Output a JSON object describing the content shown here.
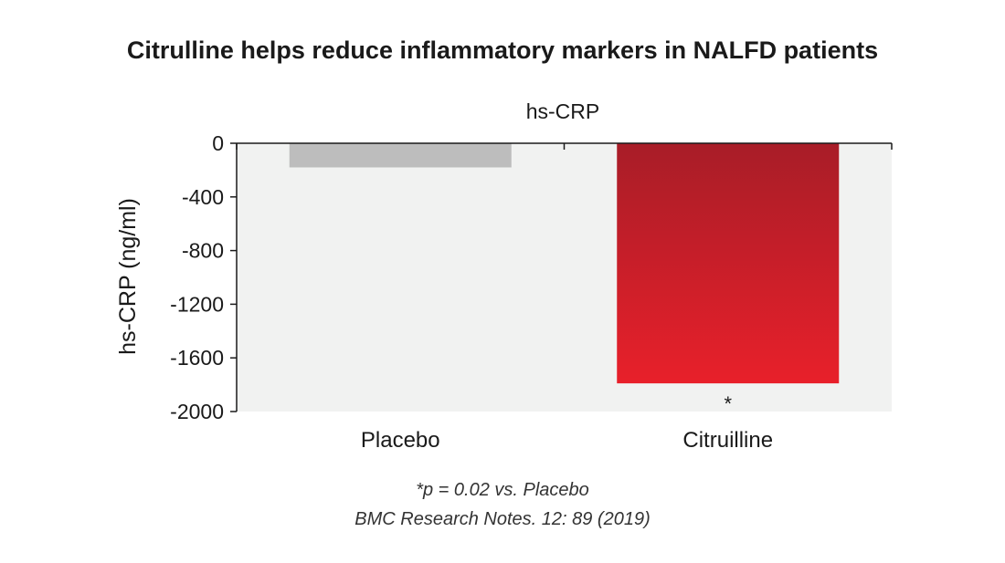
{
  "title": "Citrulline helps reduce inflammatory markers in NALFD patients",
  "footnotes": {
    "significance": "*p = 0.02 vs. Placebo",
    "source": "BMC Research Notes. 12: 89 (2019)"
  },
  "colors": {
    "placebo": "#bdbdbd",
    "citrulline_top": "#a81d28",
    "citrulline_bottom": "#e8202a",
    "plot_background": "#f1f2f1"
  },
  "chart_data": {
    "type": "bar",
    "title": "hs-CRP",
    "xlabel": "",
    "ylabel": "hs-CRP (ng/ml)",
    "categories": [
      "Placebo",
      "Citruilline"
    ],
    "values": [
      -180,
      -1790
    ],
    "annotations": [
      "",
      "*"
    ],
    "ylim": [
      -2000,
      0
    ],
    "yticks": [
      0,
      -400,
      -800,
      -1200,
      -1600,
      -2000
    ],
    "grid": false
  }
}
